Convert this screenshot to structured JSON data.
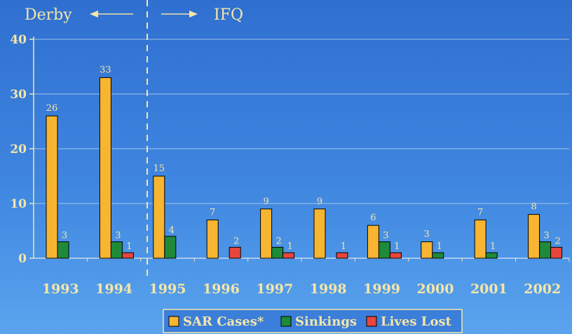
{
  "chart_data": {
    "type": "bar",
    "categories": [
      "1993",
      "1994",
      "1995",
      "1996",
      "1997",
      "1998",
      "1999",
      "2000",
      "2001",
      "2002"
    ],
    "series": [
      {
        "name": "SAR Cases*",
        "color": "#f7b531",
        "values": [
          26,
          33,
          15,
          7,
          9,
          9,
          6,
          3,
          7,
          8
        ],
        "labels": [
          "26",
          "33",
          "15",
          "7",
          "9",
          "9",
          "6",
          "3",
          "7",
          "8"
        ]
      },
      {
        "name": "Sinkings",
        "color": "#1e8a3a",
        "values": [
          3,
          3,
          4,
          0,
          2,
          0,
          3,
          1,
          1,
          3
        ],
        "labels": [
          "3",
          "3",
          "4",
          "",
          "2",
          "",
          "3",
          "1",
          "1",
          "3"
        ]
      },
      {
        "name": "Lives Lost",
        "color": "#e8453c",
        "values": [
          0,
          1,
          0,
          2,
          1,
          1,
          1,
          0,
          0,
          2
        ],
        "labels": [
          "",
          "1",
          "",
          "2",
          "1",
          "1",
          "1",
          "",
          "",
          "2"
        ]
      }
    ],
    "ylim": [
      0,
      40
    ],
    "yticks": [
      0,
      10,
      20,
      30,
      40
    ],
    "grid": true,
    "legend_position": "bottom-center",
    "eras": {
      "left": "Derby",
      "right": "IFQ",
      "divider_after": "1994"
    }
  }
}
